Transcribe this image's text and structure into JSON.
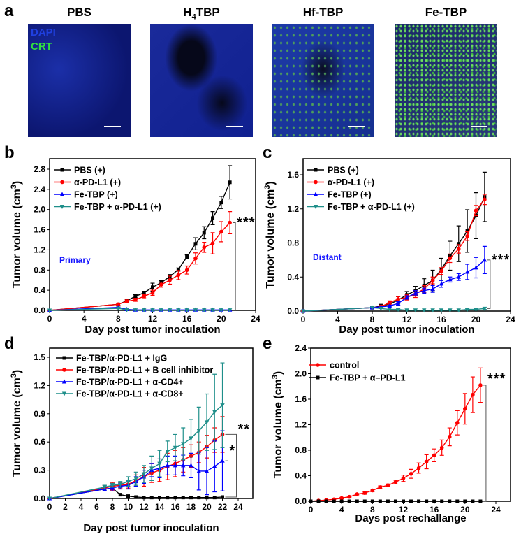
{
  "panel_labels": [
    "a",
    "b",
    "c",
    "d",
    "e"
  ],
  "panel_a": {
    "images": [
      {
        "title": "PBS"
      },
      {
        "title": "H4TBP",
        "title_main": "H",
        "title_sub": "4",
        "title_rest": "TBP"
      },
      {
        "title": "Hf-TBP"
      },
      {
        "title": "Fe-TBP"
      }
    ],
    "stain_labels": [
      "DAPI",
      "CRT"
    ],
    "colors": {
      "dapi": "#1030c0",
      "crt": "#30e040"
    }
  },
  "chart_data": [
    {
      "id": "b",
      "type": "line",
      "xlabel": "Day post tumor inoculation",
      "ylabel": "Tumor volume (cm3)",
      "ylabel_main": "Tumor volume (cm",
      "ylabel_sup": "3",
      "ylabel_end": ")",
      "xlim": [
        0,
        24
      ],
      "ylim": [
        0,
        2.8
      ],
      "xticks": [
        0,
        4,
        8,
        12,
        16,
        20,
        24
      ],
      "yticks": [
        0.0,
        0.4,
        0.8,
        1.2,
        1.6,
        2.0,
        2.4,
        2.8
      ],
      "yfmt": 1,
      "annotation": {
        "text": "Primary",
        "color": "#1515ff"
      },
      "significance": [
        {
          "text": "***",
          "from": 1,
          "to": 3
        }
      ],
      "x": [
        0,
        8,
        9,
        10,
        11,
        12,
        13,
        14,
        15,
        16,
        17,
        18,
        19,
        20,
        21
      ],
      "series": [
        {
          "name": "PBS (+)",
          "color": "#000000",
          "marker": "square",
          "values": [
            0,
            0.12,
            0.19,
            0.28,
            0.35,
            0.46,
            0.55,
            0.67,
            0.81,
            1.06,
            1.32,
            1.54,
            1.83,
            2.14,
            2.54
          ],
          "err": [
            0,
            0.02,
            0.02,
            0.03,
            0.03,
            0.08,
            0.04,
            0.04,
            0.03,
            0.04,
            0.12,
            0.12,
            0.13,
            0.12,
            0.33
          ]
        },
        {
          "name": "α-PD-L1 (+)",
          "color": "#ff0000",
          "marker": "circle",
          "values": [
            0,
            0.12,
            0.18,
            0.21,
            0.28,
            0.35,
            0.51,
            0.6,
            0.7,
            0.8,
            1.03,
            1.25,
            1.33,
            1.56,
            1.74
          ],
          "err": [
            0,
            0.02,
            0.03,
            0.03,
            0.03,
            0.05,
            0.05,
            0.08,
            0.09,
            0.08,
            0.11,
            0.1,
            0.21,
            0.2,
            0.22
          ]
        },
        {
          "name": "Fe-TBP (+)",
          "color": "#0000ff",
          "marker": "triangle",
          "values": [
            0,
            0.06,
            0.02,
            0.01,
            0.01,
            0.01,
            0.01,
            0.01,
            0.01,
            0.01,
            0.01,
            0.01,
            0.01,
            0.01,
            0.01
          ],
          "err": [
            0,
            0.01,
            0,
            0,
            0,
            0,
            0,
            0,
            0,
            0,
            0,
            0,
            0,
            0,
            0
          ]
        },
        {
          "name": "Fe-TBP + α-PD-L1 (+)",
          "color": "#1f8f8a",
          "marker": "triangle-down",
          "values": [
            0,
            0.04,
            0.01,
            0.005,
            0.005,
            0.005,
            0.005,
            0.005,
            0.005,
            0.005,
            0.005,
            0.005,
            0.005,
            0.005,
            0.005
          ],
          "err": [
            0,
            0,
            0,
            0,
            0,
            0,
            0,
            0,
            0,
            0,
            0,
            0,
            0,
            0,
            0
          ]
        }
      ]
    },
    {
      "id": "c",
      "type": "line",
      "xlabel": "Day post tumor inoculation",
      "ylabel": "Tumor volume (cm3)",
      "ylabel_main": "Tumor volume (cm",
      "ylabel_sup": "3",
      "ylabel_end": ")",
      "xlim": [
        0,
        24
      ],
      "ylim": [
        0,
        1.6
      ],
      "xticks": [
        0,
        4,
        8,
        12,
        16,
        20,
        24
      ],
      "yticks": [
        0.0,
        0.4,
        0.8,
        1.2,
        1.6
      ],
      "yfmt": 1,
      "annotation": {
        "text": "Distant",
        "color": "#1515ff"
      },
      "significance": [
        {
          "text": "***",
          "from": 2,
          "to": 3
        }
      ],
      "x": [
        0,
        8,
        9,
        10,
        11,
        12,
        13,
        14,
        15,
        16,
        17,
        18,
        19,
        20,
        21
      ],
      "series": [
        {
          "name": "PBS (+)",
          "color": "#000000",
          "marker": "square",
          "values": [
            0,
            0.04,
            0.06,
            0.08,
            0.13,
            0.19,
            0.24,
            0.3,
            0.36,
            0.49,
            0.65,
            0.79,
            0.94,
            1.12,
            1.34
          ],
          "err": [
            0,
            0.01,
            0.02,
            0.02,
            0.04,
            0.04,
            0.05,
            0.08,
            0.12,
            0.13,
            0.17,
            0.21,
            0.25,
            0.27,
            0.29
          ]
        },
        {
          "name": "α-PD-L1 (+)",
          "color": "#ff0000",
          "marker": "circle",
          "values": [
            0,
            0.04,
            0.05,
            0.1,
            0.14,
            0.16,
            0.2,
            0.26,
            0.36,
            0.47,
            0.62,
            0.73,
            0.88,
            1.18,
            1.31
          ],
          "err": [
            0,
            0.01,
            0.02,
            0.02,
            0.03,
            0.03,
            0.04,
            0.04,
            0.04,
            0.04,
            0.05,
            0.05,
            0.05,
            0.06,
            0.06
          ]
        },
        {
          "name": "Fe-TBP (+)",
          "color": "#0000ff",
          "marker": "triangle",
          "values": [
            0,
            0.04,
            0.05,
            0.06,
            0.09,
            0.16,
            0.21,
            0.24,
            0.26,
            0.32,
            0.37,
            0.4,
            0.46,
            0.51,
            0.6
          ],
          "err": [
            0,
            0.01,
            0.01,
            0.01,
            0.02,
            0.02,
            0.03,
            0.03,
            0.04,
            0.04,
            0.03,
            0.04,
            0.09,
            0.12,
            0.16
          ]
        },
        {
          "name": "Fe-TBP + α-PD-L1 (+)",
          "color": "#1f8f8a",
          "marker": "triangle-down",
          "values": [
            0,
            0.04,
            0.03,
            0.02,
            0.02,
            0.01,
            0.01,
            0.01,
            0.01,
            0.01,
            0.01,
            0.01,
            0.02,
            0.02,
            0.03
          ],
          "err": [
            0,
            0,
            0,
            0,
            0.01,
            0,
            0,
            0,
            0,
            0,
            0,
            0,
            0.01,
            0.01,
            0.01
          ]
        }
      ]
    },
    {
      "id": "d",
      "type": "line",
      "xlabel": "Day post tumor inoculation",
      "ylabel": "Tumor volume (cm3)",
      "ylabel_main": "Tumor volume (cm",
      "ylabel_sup": "3",
      "ylabel_end": ")",
      "xlim": [
        0,
        25.8
      ],
      "ylim": [
        0,
        1.5
      ],
      "xticks": [
        0,
        2,
        4,
        6,
        8,
        10,
        12,
        14,
        16,
        18,
        20,
        22,
        24
      ],
      "yticks": [
        0.0,
        0.3,
        0.6,
        0.9,
        1.2,
        1.5
      ],
      "yfmt": 1,
      "significance": [
        {
          "text": "*",
          "from": 0,
          "to": 2
        },
        {
          "text": "**",
          "from": 0,
          "to": 1
        }
      ],
      "x": [
        0,
        7,
        8,
        9,
        10,
        11,
        12,
        13,
        14,
        15,
        16,
        17,
        18,
        19,
        20,
        21,
        22
      ],
      "series": [
        {
          "name": "Fe-TBP/α-PD-L1 + IgG",
          "color": "#000000",
          "marker": "square",
          "values": [
            0,
            0.1,
            0.11,
            0.04,
            0.025,
            0.015,
            0.01,
            0.01,
            0.01,
            0.01,
            0.01,
            0.01,
            0.01,
            0.01,
            0.01,
            0.01,
            0.015
          ],
          "err": [
            0,
            0,
            0,
            0,
            0,
            0,
            0,
            0,
            0,
            0,
            0,
            0,
            0,
            0,
            0,
            0,
            0
          ]
        },
        {
          "name": "Fe-TBP/α-PD-L1 + B cell inhibitor",
          "color": "#ff0000",
          "marker": "circle",
          "values": [
            0,
            0.11,
            0.13,
            0.14,
            0.15,
            0.19,
            0.23,
            0.27,
            0.3,
            0.34,
            0.37,
            0.41,
            0.45,
            0.49,
            0.55,
            0.62,
            0.68
          ],
          "err": [
            0,
            0.03,
            0.04,
            0.03,
            0.04,
            0.06,
            0.1,
            0.1,
            0.12,
            0.14,
            0.14,
            0.13,
            0.12,
            0.11,
            0.12,
            0.13,
            0.19
          ]
        },
        {
          "name": "Fe-TBP/α-PD-L1 + α-CD4+",
          "color": "#0000ff",
          "marker": "triangle",
          "values": [
            0,
            0.1,
            0.11,
            0.13,
            0.14,
            0.18,
            0.23,
            0.3,
            0.32,
            0.35,
            0.35,
            0.35,
            0.35,
            0.29,
            0.29,
            0.34,
            0.4
          ],
          "err": [
            0,
            0.02,
            0.03,
            0.03,
            0.04,
            0.05,
            0.07,
            0.07,
            0.1,
            0.1,
            0.1,
            0.11,
            0.13,
            0.2,
            0.25,
            0.27,
            0.32
          ]
        },
        {
          "name": "Fe-TBP/α-PD-L1 + α-CD8+",
          "color": "#1f8f8a",
          "marker": "triangle-down",
          "values": [
            0,
            0.12,
            0.14,
            0.15,
            0.18,
            0.21,
            0.26,
            0.32,
            0.37,
            0.5,
            0.54,
            0.58,
            0.64,
            0.72,
            0.81,
            0.92,
            0.99
          ],
          "err": [
            0,
            0.02,
            0.02,
            0.03,
            0.05,
            0.07,
            0.09,
            0.13,
            0.14,
            0.11,
            0.14,
            0.17,
            0.2,
            0.25,
            0.3,
            0.4,
            0.45
          ]
        }
      ]
    },
    {
      "id": "e",
      "type": "line",
      "xlabel": "Days post rechallange",
      "ylabel": "Tumor volume (cm3)",
      "ylabel_main": "Tumor volume (cm",
      "ylabel_sup": "3",
      "ylabel_end": ")",
      "xlim": [
        0,
        25.9
      ],
      "ylim": [
        0,
        2.4
      ],
      "xticks": [
        0,
        4,
        8,
        12,
        16,
        20,
        24
      ],
      "yticks": [
        0.0,
        0.4,
        0.8,
        1.2,
        1.6,
        2.0,
        2.4
      ],
      "yfmt": 1,
      "significance": [
        {
          "text": "***",
          "from": 1,
          "to": 0
        }
      ],
      "x": [
        0,
        1,
        2,
        3,
        4,
        5,
        6,
        7,
        8,
        9,
        10,
        11,
        12,
        13,
        14,
        15,
        16,
        17,
        18,
        19,
        20,
        21,
        22
      ],
      "series": [
        {
          "name": "control",
          "color": "#ff0000",
          "marker": "circle",
          "values": [
            0,
            0.01,
            0.02,
            0.03,
            0.05,
            0.07,
            0.11,
            0.13,
            0.17,
            0.22,
            0.25,
            0.3,
            0.36,
            0.43,
            0.52,
            0.62,
            0.72,
            0.84,
            1.01,
            1.23,
            1.45,
            1.67,
            1.82
          ],
          "err": [
            0,
            0,
            0,
            0.01,
            0.01,
            0.01,
            0.01,
            0.02,
            0.02,
            0.02,
            0.02,
            0.03,
            0.05,
            0.07,
            0.08,
            0.11,
            0.1,
            0.12,
            0.14,
            0.19,
            0.24,
            0.28,
            0.27
          ]
        },
        {
          "name": "Fe-TBP + α–PD-L1",
          "color": "#000000",
          "marker": "square",
          "values": [
            0,
            0,
            0,
            0,
            0,
            0,
            0,
            0,
            0,
            0,
            0,
            0,
            0,
            0,
            0,
            0,
            0,
            0,
            0,
            0,
            0,
            0,
            0
          ],
          "err": [
            0,
            0,
            0,
            0,
            0,
            0,
            0,
            0,
            0,
            0,
            0,
            0,
            0,
            0,
            0,
            0,
            0,
            0,
            0,
            0,
            0,
            0,
            0
          ]
        }
      ]
    }
  ]
}
